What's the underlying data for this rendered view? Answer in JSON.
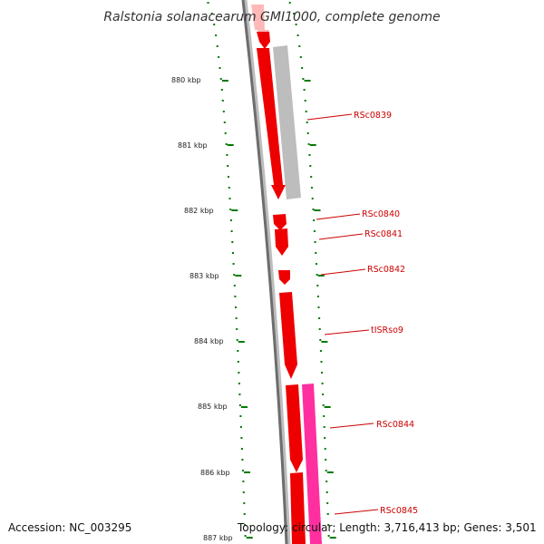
{
  "title": "Ralstonia solanacearum GMI1000, complete genome",
  "footer": {
    "accession": "Accession: NC_003295",
    "topology": "Topology: circular; Length: 3,716,413 bp; Genes: 3,501"
  },
  "kbp_labels": [
    "880 kbp",
    "881 kbp",
    "882 kbp",
    "883 kbp",
    "884 kbp",
    "885 kbp",
    "886 kbp",
    "887 kbp"
  ],
  "genes": [
    {
      "label": "RSc0839",
      "color": "#ee0000"
    },
    {
      "label": "RSc0840",
      "color": "#ee0000"
    },
    {
      "label": "RSc0841",
      "color": "#ee0000"
    },
    {
      "label": "RSc0842",
      "color": "#ee0000"
    },
    {
      "label": "tISRso9",
      "color": "#ee0000"
    },
    {
      "label": "RSc0844",
      "color": "#ee0000"
    },
    {
      "label": "RSc0845",
      "color": "#ee0000"
    }
  ],
  "colors": {
    "backbone": "#6d6d6d",
    "gene_forward": "#ee0000",
    "gene_light": "#ffb8b8",
    "cds_gray": "#bdbdbd",
    "cds_magenta": "#ff2fa0",
    "ticks": "#007a00",
    "labels": "#cc0000"
  }
}
